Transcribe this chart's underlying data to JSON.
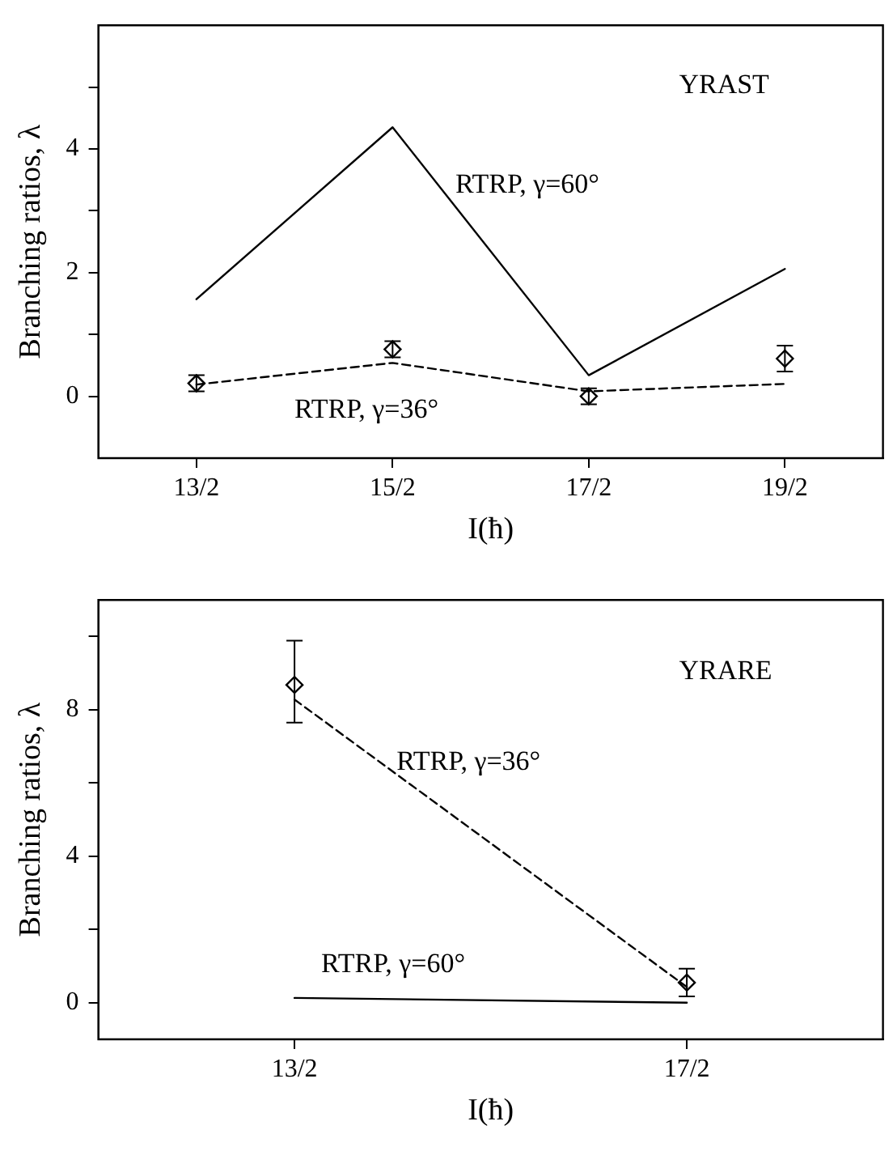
{
  "chart_data": [
    {
      "type": "line",
      "xlabel": "I(ħ)",
      "ylabel": "Branching ratios, λ",
      "categories": [
        "13/2",
        "15/2",
        "17/2",
        "19/2"
      ],
      "ylim": [
        -1,
        6
      ],
      "yticks": [
        0,
        {
          "value": 1,
          "label": null
        },
        2,
        {
          "value": 3,
          "label": null
        },
        4,
        {
          "value": 5,
          "label": null
        }
      ],
      "series": [
        {
          "type": "line",
          "color": "#000000",
          "marker": "none",
          "line_style": "solid",
          "values": [
            1.57,
            4.35,
            0.34,
            2.06
          ]
        },
        {
          "type": "line",
          "color": "#000000",
          "marker": "none",
          "line_style": "dashed",
          "values": [
            0.19,
            0.54,
            0.08,
            0.2
          ]
        },
        {
          "type": "scatter",
          "color": "#000000",
          "marker": "diamond",
          "values": [
            0.21,
            0.76,
            0.0,
            0.61
          ],
          "errors": [
            0.13,
            0.13,
            0.13,
            0.21
          ]
        }
      ],
      "annotations": [
        "YRAST",
        "RTRP, γ=60°",
        "RTRP, γ=36°"
      ],
      "grid": false,
      "legend": false
    },
    {
      "type": "line",
      "xlabel": "I(ħ)",
      "ylabel": "Branching ratios, λ",
      "categories": [
        "13/2",
        "17/2"
      ],
      "ylim": [
        -1,
        11
      ],
      "yticks": [
        0,
        {
          "value": 2,
          "label": null
        },
        4,
        {
          "value": 6,
          "label": null
        },
        8,
        {
          "value": 10,
          "label": null
        }
      ],
      "series": [
        {
          "type": "line",
          "color": "#000000",
          "marker": "none",
          "line_style": "solid",
          "values": [
            0.13,
            0.0
          ]
        },
        {
          "type": "line",
          "color": "#000000",
          "marker": "none",
          "line_style": "dashed",
          "values": [
            8.28,
            0.43
          ]
        },
        {
          "type": "scatter",
          "color": "#000000",
          "marker": "diamond",
          "values": [
            8.68,
            0.55
          ],
          "errors": [
            [
              7.65,
              9.89
            ],
            0.38
          ]
        }
      ],
      "annotations": [
        "YRARE",
        "RTRP, γ=36°",
        "RTRP, γ=60°"
      ],
      "grid": false,
      "legend": false
    }
  ]
}
